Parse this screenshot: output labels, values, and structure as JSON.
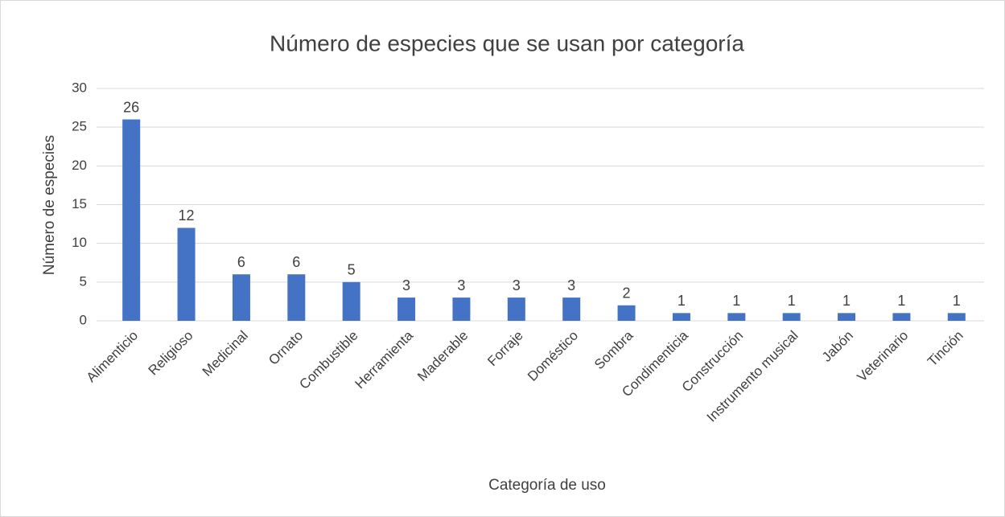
{
  "chart_data": {
    "type": "bar",
    "title": "Número de especies que se usan por categoría",
    "x_label": "Categoría de uso",
    "y_label": "Número de especies",
    "categories": [
      "Alimenticio",
      "Religioso",
      "Medicinal",
      "Ornato",
      "Combustible",
      "Herramienta",
      "Maderable",
      "Forraje",
      "Doméstico",
      "Sombra",
      "Condimenticia",
      "Construcción",
      "Instrumento musical",
      "Jabón",
      "Veterinario",
      "Tinción"
    ],
    "values": [
      26,
      12,
      6,
      6,
      5,
      3,
      3,
      3,
      3,
      2,
      1,
      1,
      1,
      1,
      1,
      1
    ],
    "color": "#4472c4",
    "ylim": [
      0,
      30
    ],
    "yticks": [
      0,
      5,
      10,
      15,
      20,
      25,
      30
    ],
    "grid": true
  }
}
